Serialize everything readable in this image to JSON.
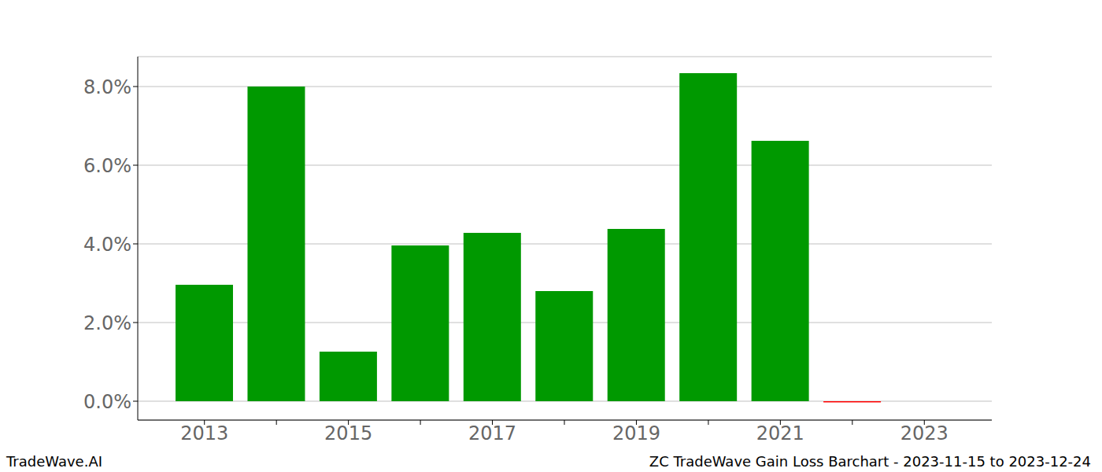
{
  "chart_data": {
    "type": "bar",
    "categories": [
      "2013",
      null,
      "2015",
      null,
      "2017",
      null,
      "2019",
      null,
      "2021",
      null,
      "2023"
    ],
    "values": [
      2.96,
      8.0,
      1.26,
      3.96,
      4.28,
      2.8,
      4.38,
      8.34,
      6.62,
      -0.03,
      null
    ],
    "colors": [
      "#009900",
      "#009900",
      "#009900",
      "#009900",
      "#009900",
      "#009900",
      "#009900",
      "#009900",
      "#009900",
      "#ff0000",
      "#009900"
    ],
    "ylim": [
      -0.48,
      8.76
    ],
    "yticks": [
      {
        "value": 0,
        "label": "0.0%"
      },
      {
        "value": 2,
        "label": "2.0%"
      },
      {
        "value": 4,
        "label": "4.0%"
      },
      {
        "value": 6,
        "label": "6.0%"
      },
      {
        "value": 8,
        "label": "8.0%"
      }
    ],
    "grid": true,
    "annotations": [
      "TradeWave.AI",
      "ZC TradeWave Gain Loss Barchart - 2023-11-15 to 2023-12-24"
    ]
  }
}
